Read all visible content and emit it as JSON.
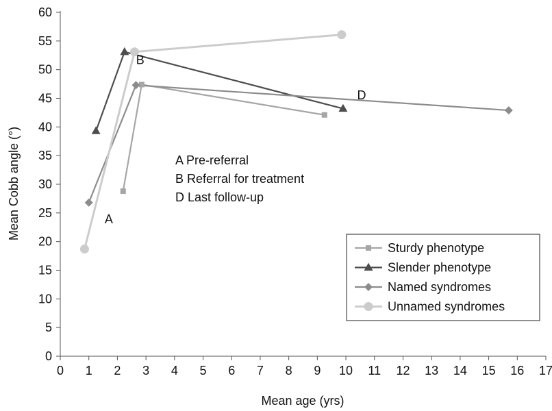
{
  "chart_data": {
    "type": "line",
    "title": "",
    "xlabel": "Mean age (yrs)",
    "ylabel": "Mean Cobb angle (°)",
    "xlim": [
      0,
      17
    ],
    "ylim": [
      0,
      60
    ],
    "x_ticks": [
      0,
      1,
      2,
      3,
      4,
      5,
      6,
      7,
      8,
      9,
      10,
      11,
      12,
      13,
      14,
      15,
      16,
      17
    ],
    "y_ticks": [
      0,
      5,
      10,
      15,
      20,
      25,
      30,
      35,
      40,
      45,
      50,
      55,
      60
    ],
    "grid": false,
    "legend_position": "bottom-right",
    "series": [
      {
        "name": "Sturdy phenotype",
        "marker": "square",
        "color": "#a6a6a6",
        "points": [
          {
            "x": 2.2,
            "y": 28.8
          },
          {
            "x": 2.85,
            "y": 47.4
          },
          {
            "x": 9.25,
            "y": 42.1
          }
        ]
      },
      {
        "name": "Slender phenotype",
        "marker": "triangle",
        "color": "#4d4d4d",
        "points": [
          {
            "x": 1.25,
            "y": 39.3
          },
          {
            "x": 2.25,
            "y": 53.1
          },
          {
            "x": 9.9,
            "y": 43.2
          }
        ]
      },
      {
        "name": "Named syndromes",
        "marker": "diamond",
        "color": "#8c8c8c",
        "points": [
          {
            "x": 1.0,
            "y": 26.8
          },
          {
            "x": 2.65,
            "y": 47.3
          },
          {
            "x": 15.7,
            "y": 42.9
          }
        ]
      },
      {
        "name": "Unnamed syndromes",
        "marker": "circle",
        "color": "#cccccc",
        "points": [
          {
            "x": 0.85,
            "y": 18.7
          },
          {
            "x": 2.6,
            "y": 53.1
          },
          {
            "x": 9.85,
            "y": 56.1
          }
        ]
      }
    ],
    "point_labels": [
      {
        "text": "A",
        "x": 1.7,
        "y": 23.2
      },
      {
        "text": "B",
        "x": 2.8,
        "y": 51.0
      },
      {
        "text": "D",
        "x": 10.55,
        "y": 44.8
      }
    ],
    "annotation_lines": [
      "A Pre-referral",
      "B Referral for treatment",
      "D Last follow-up"
    ]
  }
}
